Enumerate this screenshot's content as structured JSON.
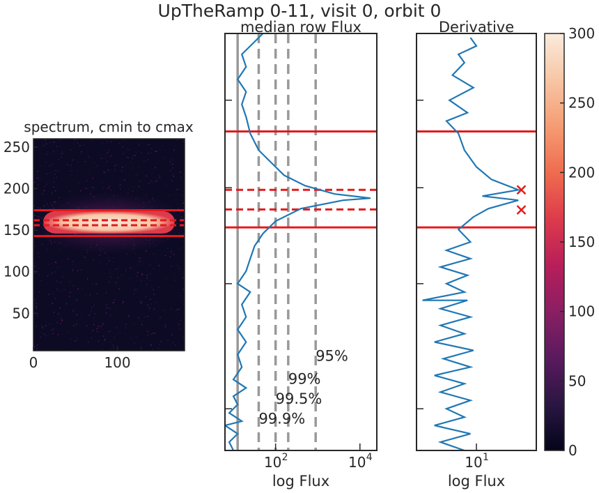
{
  "figure": {
    "suptitle": "UpTheRamp 0-11, visit 0, orbit 0"
  },
  "chart_data": [
    {
      "type": "heatmap",
      "title": "spectrum, cmin to cmax",
      "xlabel": "",
      "ylabel": "",
      "xlim": [
        0,
        180
      ],
      "ylim": [
        5,
        260
      ],
      "x_ticks": [
        0,
        100
      ],
      "x_tick_labels": [
        "0",
        "100"
      ],
      "y_ticks": [
        50,
        100,
        150,
        200,
        250
      ],
      "y_tick_labels": [
        "50",
        "100",
        "150",
        "200",
        "250"
      ],
      "bright_band": {
        "row_min": 146,
        "row_max": 173,
        "col_min": 12,
        "col_max": 168,
        "peak_row": 159
      },
      "hlines": [
        {
          "y": 143,
          "style": "solid",
          "color": "#e31a1c"
        },
        {
          "y": 174,
          "style": "solid",
          "color": "#e31a1c"
        },
        {
          "y": 156,
          "style": "dashed",
          "color": "#e31a1c"
        },
        {
          "y": 162,
          "style": "dashed",
          "color": "#e31a1c"
        }
      ]
    },
    {
      "type": "line",
      "title": "median row Flux",
      "xlabel": "log Flux",
      "xscale": "log",
      "xlim_log10": [
        0.8,
        4.4
      ],
      "ylim": [
        0,
        1
      ],
      "x_ticks_log10": [
        2,
        4
      ],
      "x_tick_labels": [
        "10",
        "10"
      ],
      "x_tick_exponents": [
        "2",
        "4"
      ],
      "y_ticks": [
        0.1,
        0.4,
        0.63,
        0.84
      ],
      "series": [
        {
          "color": "#1f77b4",
          "points_log10_flux_vs_y": [
            [
              1.0,
              0.0
            ],
            [
              0.9,
              0.02
            ],
            [
              1.1,
              0.04
            ],
            [
              0.8,
              0.06
            ],
            [
              1.2,
              0.07
            ],
            [
              0.9,
              0.09
            ],
            [
              1.1,
              0.11
            ],
            [
              1.0,
              0.13
            ],
            [
              1.3,
              0.15
            ],
            [
              1.0,
              0.17
            ],
            [
              1.2,
              0.2
            ],
            [
              1.1,
              0.23
            ],
            [
              1.3,
              0.26
            ],
            [
              1.1,
              0.29
            ],
            [
              1.3,
              0.32
            ],
            [
              1.2,
              0.35
            ],
            [
              1.4,
              0.38
            ],
            [
              1.1,
              0.4
            ],
            [
              1.3,
              0.43
            ],
            [
              1.4,
              0.46
            ],
            [
              1.5,
              0.49
            ],
            [
              1.7,
              0.52
            ],
            [
              2.0,
              0.55
            ],
            [
              2.6,
              0.58
            ],
            [
              3.6,
              0.6
            ],
            [
              4.25,
              0.605
            ],
            [
              3.4,
              0.615
            ],
            [
              2.7,
              0.635
            ],
            [
              2.2,
              0.66
            ],
            [
              1.9,
              0.69
            ],
            [
              1.6,
              0.72
            ],
            [
              1.4,
              0.76
            ],
            [
              1.3,
              0.8
            ],
            [
              1.2,
              0.83
            ],
            [
              1.3,
              0.86
            ],
            [
              1.1,
              0.89
            ],
            [
              1.3,
              0.92
            ],
            [
              1.2,
              0.95
            ],
            [
              1.5,
              0.98
            ],
            [
              1.7,
              1.0
            ]
          ]
        }
      ],
      "vlines": [
        {
          "x_log10": 1.1,
          "style": "solid",
          "color": "#999999"
        },
        {
          "x_log10": 1.6,
          "style": "dashed",
          "color": "#999999"
        },
        {
          "x_log10": 2.0,
          "style": "dashed",
          "color": "#999999"
        },
        {
          "x_log10": 2.3,
          "style": "dashed",
          "color": "#999999"
        },
        {
          "x_log10": 2.95,
          "style": "dashed",
          "color": "#999999"
        }
      ],
      "hlines": [
        {
          "y": 0.535,
          "style": "solid",
          "color": "#e31a1c"
        },
        {
          "y": 0.765,
          "style": "solid",
          "color": "#e31a1c"
        },
        {
          "y": 0.578,
          "style": "dashed",
          "color": "#e31a1c"
        },
        {
          "y": 0.625,
          "style": "dashed",
          "color": "#e31a1c"
        }
      ],
      "annotations": [
        {
          "text": "95%",
          "x_log10": 2.95,
          "y": 0.215
        },
        {
          "text": "99%",
          "x_log10": 2.3,
          "y": 0.16
        },
        {
          "text": "99.5%",
          "x_log10": 2.0,
          "y": 0.112
        },
        {
          "text": "99.9%",
          "x_log10": 1.6,
          "y": 0.064
        }
      ]
    },
    {
      "type": "line",
      "title": "Derivative",
      "xlabel": "log Flux",
      "xscale": "log",
      "xlim_log10": [
        0.0,
        2.0
      ],
      "ylim": [
        0,
        1
      ],
      "x_ticks_log10": [
        1
      ],
      "x_tick_labels": [
        "10"
      ],
      "x_tick_exponents": [
        "1"
      ],
      "y_ticks": [
        0.1,
        0.4,
        0.63,
        0.84
      ],
      "series": [
        {
          "color": "#1f77b4",
          "points_log10_flux_vs_y": [
            [
              0.8,
              0.0
            ],
            [
              0.4,
              0.02
            ],
            [
              0.9,
              0.04
            ],
            [
              0.3,
              0.06
            ],
            [
              0.8,
              0.08
            ],
            [
              0.5,
              0.1
            ],
            [
              0.9,
              0.12
            ],
            [
              0.4,
              0.14
            ],
            [
              0.8,
              0.16
            ],
            [
              0.3,
              0.18
            ],
            [
              0.9,
              0.2
            ],
            [
              0.45,
              0.22
            ],
            [
              0.95,
              0.24
            ],
            [
              0.3,
              0.26
            ],
            [
              0.8,
              0.28
            ],
            [
              0.4,
              0.3
            ],
            [
              0.9,
              0.32
            ],
            [
              0.4,
              0.34
            ],
            [
              0.85,
              0.36
            ],
            [
              0.1,
              0.36
            ],
            [
              0.8,
              0.38
            ],
            [
              0.5,
              0.4
            ],
            [
              0.85,
              0.42
            ],
            [
              0.4,
              0.44
            ],
            [
              0.9,
              0.46
            ],
            [
              0.5,
              0.48
            ],
            [
              0.9,
              0.5
            ],
            [
              0.7,
              0.53
            ],
            [
              0.95,
              0.56
            ],
            [
              1.2,
              0.58
            ],
            [
              1.7,
              0.6
            ],
            [
              1.1,
              0.61
            ],
            [
              1.7,
              0.625
            ],
            [
              1.25,
              0.65
            ],
            [
              1.0,
              0.68
            ],
            [
              0.8,
              0.72
            ],
            [
              0.7,
              0.76
            ],
            [
              0.5,
              0.79
            ],
            [
              0.85,
              0.81
            ],
            [
              0.55,
              0.84
            ],
            [
              0.95,
              0.87
            ],
            [
              0.6,
              0.9
            ],
            [
              0.8,
              0.93
            ],
            [
              0.7,
              0.95
            ],
            [
              1.0,
              0.97
            ],
            [
              0.9,
              0.99
            ]
          ]
        }
      ],
      "hlines": [
        {
          "y": 0.535,
          "style": "solid",
          "color": "#e31a1c"
        },
        {
          "y": 0.765,
          "style": "solid",
          "color": "#e31a1c"
        }
      ],
      "markers": [
        {
          "x_log10": 1.75,
          "y": 0.577,
          "symbol": "x",
          "color": "#e31a1c"
        },
        {
          "x_log10": 1.75,
          "y": 0.625,
          "symbol": "x",
          "color": "#e31a1c"
        }
      ]
    }
  ],
  "colorbar": {
    "ticks": [
      0,
      50,
      100,
      150,
      200,
      250,
      300
    ],
    "tick_labels": [
      "0",
      "50",
      "100",
      "150",
      "200",
      "250",
      "300"
    ],
    "min": 0,
    "max": 300,
    "colors": [
      "#03051a",
      "#2a1642",
      "#5a1a5e",
      "#8a1f63",
      "#b81e5a",
      "#dd3b4b",
      "#ef6c4f",
      "#f59c73",
      "#f7c6a5",
      "#faebdd"
    ]
  }
}
